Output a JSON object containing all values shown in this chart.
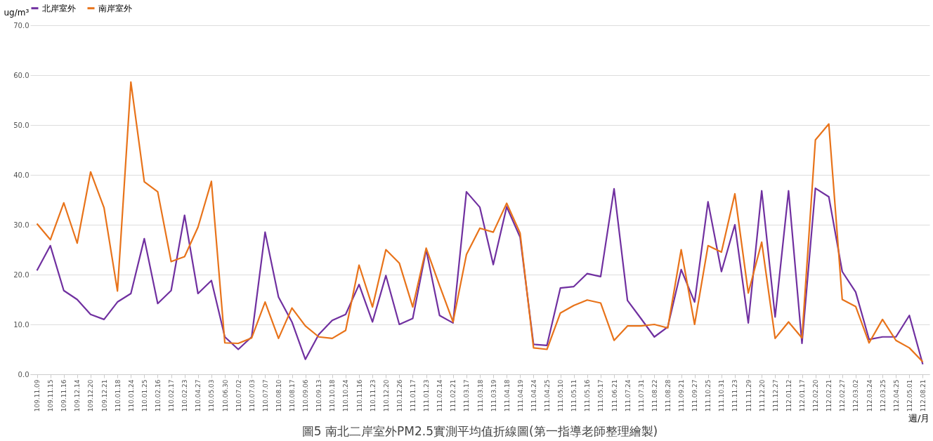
{
  "chart_data": {
    "type": "line",
    "title": "圖5 南北二岸室外PM2.5實測平均值折線圖(第一指導老師整理繪製)",
    "xlabel": "週/月",
    "ylabel": "ug/m³",
    "categories": [
      "109.11.09",
      "109.11.15",
      "109.11.16",
      "109.12.14",
      "109.12.20",
      "109.12.21",
      "110.01.18",
      "110.01.24",
      "110.01.25",
      "110.02.16",
      "110.02.17",
      "110.02.23",
      "110.04.27",
      "110.05.03",
      "110.06.30",
      "110.07.02",
      "110.07.03",
      "110.07.07",
      "110.08.10",
      "110.08.17",
      "110.09.06",
      "110.09.13",
      "110.10.18",
      "110.10.24",
      "110.11.16",
      "110.11.23",
      "110.12.20",
      "110.12.26",
      "111.01.17",
      "111.01.23",
      "111.02.14",
      "111.02.21",
      "111.03.17",
      "111.03.18",
      "111.03.19",
      "111.04.18",
      "111.04.19",
      "111.04.24",
      "111.04.25",
      "111.05.10",
      "111.05.11",
      "111.05.16",
      "111.05.17",
      "111.06.21",
      "111.07.24",
      "111.07.31",
      "111.08.22",
      "111.08.28",
      "111.09.21",
      "111.09.27",
      "111.10.25",
      "111.10.31",
      "111.11.23",
      "111.11.29",
      "111.12.20",
      "111.12.27",
      "112.01.12",
      "112.01.17",
      "112.02.20",
      "112.02.21",
      "112.02.27",
      "112.03.02",
      "112.03.24",
      "112.03.25",
      "112.04.25",
      "112.05.01",
      "112.08.21"
    ],
    "series": [
      {
        "name": "北岸室外",
        "color": "#7030a0",
        "values": [
          20.8,
          25.8,
          16.8,
          15,
          12,
          11,
          14.5,
          16.2,
          27.2,
          14.2,
          16.8,
          31.9,
          16.2,
          18.8,
          7.5,
          5,
          7.5,
          28.5,
          15.5,
          10.5,
          3,
          8,
          10.8,
          12,
          18,
          10.5,
          19.8,
          10,
          11.2,
          25,
          11.8,
          10.3,
          36.6,
          33.5,
          22,
          33.6,
          27.5,
          6,
          5.8,
          17.3,
          17.6,
          20.2,
          19.6,
          37.2,
          14.8,
          11.2,
          7.5,
          9.5,
          21,
          14.5,
          34.6,
          20.6,
          30,
          10.3,
          36.8,
          11.5,
          36.8,
          6.2,
          37.3,
          35.6,
          20.6,
          16.5,
          7,
          7.5,
          7.5,
          11.8,
          2
        ]
      },
      {
        "name": "南岸室外",
        "color": "#e8731a",
        "values": [
          30.2,
          27,
          34.4,
          26.3,
          40.6,
          33.4,
          16.7,
          58.6,
          38.6,
          36.6,
          22.6,
          23.6,
          29.5,
          38.7,
          6.3,
          6.2,
          7.3,
          14.5,
          7.2,
          13.3,
          9.7,
          7.5,
          7.2,
          8.8,
          21.9,
          13.5,
          25,
          22.3,
          13.5,
          25.3,
          17.8,
          10.5,
          24,
          29.3,
          28.5,
          34.3,
          28.3,
          5.3,
          5,
          12.3,
          13.8,
          14.9,
          14.3,
          6.8,
          9.7,
          9.7,
          10,
          9.3,
          25,
          10,
          25.8,
          24.5,
          36.2,
          16.3,
          26.5,
          7.2,
          10.5,
          7.3,
          47,
          50.2,
          15,
          13.6,
          6.3,
          11,
          6.8,
          5.3,
          2.5
        ]
      }
    ],
    "ylim": [
      0,
      70
    ],
    "yticks": [
      {
        "value": 0,
        "label": "0.0"
      },
      {
        "value": 10,
        "label": "10.0"
      },
      {
        "value": 20,
        "label": "20.0"
      },
      {
        "value": 30,
        "label": "30.0"
      },
      {
        "value": 40,
        "label": "40.0"
      },
      {
        "value": 50,
        "label": "50.0"
      },
      {
        "value": 60,
        "label": "60.0"
      },
      {
        "value": 70,
        "label": "70.0"
      }
    ],
    "grid": "y",
    "legend": "top",
    "marker": "none",
    "line_style": "solid"
  }
}
